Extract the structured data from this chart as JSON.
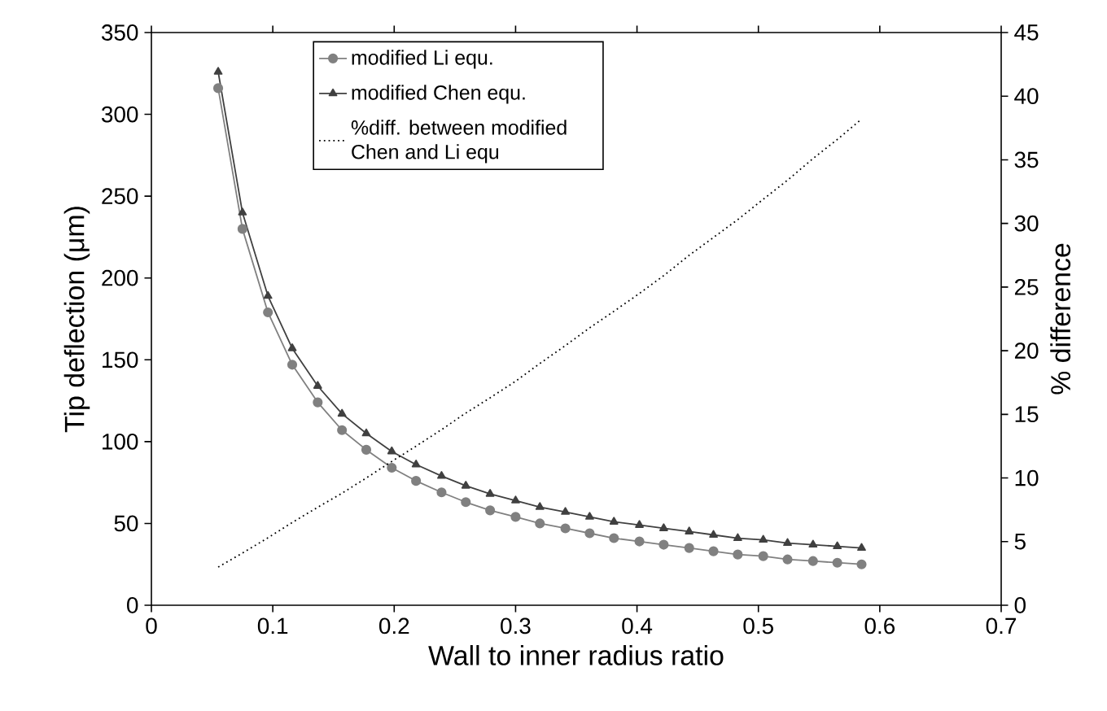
{
  "chart_data": {
    "type": "line",
    "xlabel": "Wall to inner radius ratio",
    "ylabel": "Tip deflection (μm)",
    "y2label": "% difference",
    "x": [
      0.055,
      0.075,
      0.096,
      0.116,
      0.137,
      0.157,
      0.177,
      0.198,
      0.218,
      0.239,
      0.259,
      0.279,
      0.3,
      0.32,
      0.341,
      0.361,
      0.381,
      0.402,
      0.422,
      0.443,
      0.463,
      0.483,
      0.504,
      0.524,
      0.545,
      0.565,
      0.585
    ],
    "series": [
      {
        "name": "modified Li equ.",
        "color": "#808080",
        "marker": "circle",
        "line_style": "solid",
        "values": [
          316,
          230,
          179,
          147,
          124,
          107,
          95,
          84,
          76,
          69,
          63,
          58,
          54,
          50,
          47,
          44,
          41,
          39,
          37,
          35,
          33,
          31,
          30,
          28,
          27,
          26,
          25
        ]
      },
      {
        "name": "modified Chen equ.",
        "color": "#404040",
        "marker": "triangle",
        "line_style": "solid",
        "values": [
          326,
          240,
          189,
          157,
          134,
          117,
          105,
          94,
          86,
          79,
          73,
          68,
          64,
          60,
          57,
          54,
          51,
          49,
          47,
          45,
          43,
          41,
          40,
          38,
          37,
          36,
          35
        ]
      },
      {
        "name": "%diff. between modified Chen and Li equ",
        "color": "#000000",
        "marker": "none",
        "line_style": "dotted",
        "axis": "y2",
        "values": [
          3.0,
          4.1,
          5.3,
          6.5,
          7.7,
          8.8,
          10.0,
          11.3,
          12.5,
          13.8,
          15.1,
          16.3,
          17.6,
          19.0,
          20.4,
          21.8,
          23.1,
          24.5,
          25.9,
          27.5,
          28.9,
          30.3,
          31.9,
          33.4,
          35.1,
          36.6,
          38.2
        ]
      }
    ],
    "xlim": [
      0,
      0.7
    ],
    "xticks": [
      0,
      0.1,
      0.2,
      0.3,
      0.4,
      0.5,
      0.6,
      0.7
    ],
    "ylim": [
      0,
      350
    ],
    "yticks": [
      0,
      50,
      100,
      150,
      200,
      250,
      300,
      350
    ],
    "y2lim": [
      0,
      45
    ],
    "y2ticks": [
      0,
      5,
      10,
      15,
      20,
      25,
      30,
      35,
      40,
      45
    ],
    "grid": false,
    "legend": "top"
  }
}
